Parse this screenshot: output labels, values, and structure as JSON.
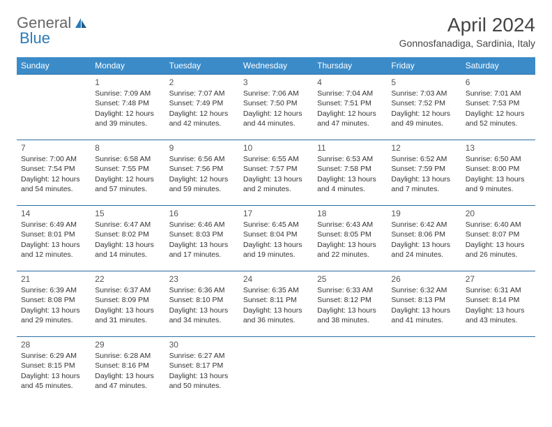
{
  "logo": {
    "text1": "General",
    "text2": "Blue"
  },
  "title": "April 2024",
  "subtitle": "Gonnosfanadiga, Sardinia, Italy",
  "colors": {
    "header_bg": "#3b8bc9",
    "header_text": "#ffffff",
    "cell_border": "#2a6da3",
    "body_text": "#333333",
    "title_text": "#444444",
    "logo_gray": "#666666",
    "logo_blue": "#2a7ab9",
    "background": "#ffffff"
  },
  "daynames": [
    "Sunday",
    "Monday",
    "Tuesday",
    "Wednesday",
    "Thursday",
    "Friday",
    "Saturday"
  ],
  "weeks": [
    [
      {
        "n": "",
        "sr": "",
        "ss": "",
        "d1": "",
        "d2": ""
      },
      {
        "n": "1",
        "sr": "Sunrise: 7:09 AM",
        "ss": "Sunset: 7:48 PM",
        "d1": "Daylight: 12 hours",
        "d2": "and 39 minutes."
      },
      {
        "n": "2",
        "sr": "Sunrise: 7:07 AM",
        "ss": "Sunset: 7:49 PM",
        "d1": "Daylight: 12 hours",
        "d2": "and 42 minutes."
      },
      {
        "n": "3",
        "sr": "Sunrise: 7:06 AM",
        "ss": "Sunset: 7:50 PM",
        "d1": "Daylight: 12 hours",
        "d2": "and 44 minutes."
      },
      {
        "n": "4",
        "sr": "Sunrise: 7:04 AM",
        "ss": "Sunset: 7:51 PM",
        "d1": "Daylight: 12 hours",
        "d2": "and 47 minutes."
      },
      {
        "n": "5",
        "sr": "Sunrise: 7:03 AM",
        "ss": "Sunset: 7:52 PM",
        "d1": "Daylight: 12 hours",
        "d2": "and 49 minutes."
      },
      {
        "n": "6",
        "sr": "Sunrise: 7:01 AM",
        "ss": "Sunset: 7:53 PM",
        "d1": "Daylight: 12 hours",
        "d2": "and 52 minutes."
      }
    ],
    [
      {
        "n": "7",
        "sr": "Sunrise: 7:00 AM",
        "ss": "Sunset: 7:54 PM",
        "d1": "Daylight: 12 hours",
        "d2": "and 54 minutes."
      },
      {
        "n": "8",
        "sr": "Sunrise: 6:58 AM",
        "ss": "Sunset: 7:55 PM",
        "d1": "Daylight: 12 hours",
        "d2": "and 57 minutes."
      },
      {
        "n": "9",
        "sr": "Sunrise: 6:56 AM",
        "ss": "Sunset: 7:56 PM",
        "d1": "Daylight: 12 hours",
        "d2": "and 59 minutes."
      },
      {
        "n": "10",
        "sr": "Sunrise: 6:55 AM",
        "ss": "Sunset: 7:57 PM",
        "d1": "Daylight: 13 hours",
        "d2": "and 2 minutes."
      },
      {
        "n": "11",
        "sr": "Sunrise: 6:53 AM",
        "ss": "Sunset: 7:58 PM",
        "d1": "Daylight: 13 hours",
        "d2": "and 4 minutes."
      },
      {
        "n": "12",
        "sr": "Sunrise: 6:52 AM",
        "ss": "Sunset: 7:59 PM",
        "d1": "Daylight: 13 hours",
        "d2": "and 7 minutes."
      },
      {
        "n": "13",
        "sr": "Sunrise: 6:50 AM",
        "ss": "Sunset: 8:00 PM",
        "d1": "Daylight: 13 hours",
        "d2": "and 9 minutes."
      }
    ],
    [
      {
        "n": "14",
        "sr": "Sunrise: 6:49 AM",
        "ss": "Sunset: 8:01 PM",
        "d1": "Daylight: 13 hours",
        "d2": "and 12 minutes."
      },
      {
        "n": "15",
        "sr": "Sunrise: 6:47 AM",
        "ss": "Sunset: 8:02 PM",
        "d1": "Daylight: 13 hours",
        "d2": "and 14 minutes."
      },
      {
        "n": "16",
        "sr": "Sunrise: 6:46 AM",
        "ss": "Sunset: 8:03 PM",
        "d1": "Daylight: 13 hours",
        "d2": "and 17 minutes."
      },
      {
        "n": "17",
        "sr": "Sunrise: 6:45 AM",
        "ss": "Sunset: 8:04 PM",
        "d1": "Daylight: 13 hours",
        "d2": "and 19 minutes."
      },
      {
        "n": "18",
        "sr": "Sunrise: 6:43 AM",
        "ss": "Sunset: 8:05 PM",
        "d1": "Daylight: 13 hours",
        "d2": "and 22 minutes."
      },
      {
        "n": "19",
        "sr": "Sunrise: 6:42 AM",
        "ss": "Sunset: 8:06 PM",
        "d1": "Daylight: 13 hours",
        "d2": "and 24 minutes."
      },
      {
        "n": "20",
        "sr": "Sunrise: 6:40 AM",
        "ss": "Sunset: 8:07 PM",
        "d1": "Daylight: 13 hours",
        "d2": "and 26 minutes."
      }
    ],
    [
      {
        "n": "21",
        "sr": "Sunrise: 6:39 AM",
        "ss": "Sunset: 8:08 PM",
        "d1": "Daylight: 13 hours",
        "d2": "and 29 minutes."
      },
      {
        "n": "22",
        "sr": "Sunrise: 6:37 AM",
        "ss": "Sunset: 8:09 PM",
        "d1": "Daylight: 13 hours",
        "d2": "and 31 minutes."
      },
      {
        "n": "23",
        "sr": "Sunrise: 6:36 AM",
        "ss": "Sunset: 8:10 PM",
        "d1": "Daylight: 13 hours",
        "d2": "and 34 minutes."
      },
      {
        "n": "24",
        "sr": "Sunrise: 6:35 AM",
        "ss": "Sunset: 8:11 PM",
        "d1": "Daylight: 13 hours",
        "d2": "and 36 minutes."
      },
      {
        "n": "25",
        "sr": "Sunrise: 6:33 AM",
        "ss": "Sunset: 8:12 PM",
        "d1": "Daylight: 13 hours",
        "d2": "and 38 minutes."
      },
      {
        "n": "26",
        "sr": "Sunrise: 6:32 AM",
        "ss": "Sunset: 8:13 PM",
        "d1": "Daylight: 13 hours",
        "d2": "and 41 minutes."
      },
      {
        "n": "27",
        "sr": "Sunrise: 6:31 AM",
        "ss": "Sunset: 8:14 PM",
        "d1": "Daylight: 13 hours",
        "d2": "and 43 minutes."
      }
    ],
    [
      {
        "n": "28",
        "sr": "Sunrise: 6:29 AM",
        "ss": "Sunset: 8:15 PM",
        "d1": "Daylight: 13 hours",
        "d2": "and 45 minutes."
      },
      {
        "n": "29",
        "sr": "Sunrise: 6:28 AM",
        "ss": "Sunset: 8:16 PM",
        "d1": "Daylight: 13 hours",
        "d2": "and 47 minutes."
      },
      {
        "n": "30",
        "sr": "Sunrise: 6:27 AM",
        "ss": "Sunset: 8:17 PM",
        "d1": "Daylight: 13 hours",
        "d2": "and 50 minutes."
      },
      {
        "n": "",
        "sr": "",
        "ss": "",
        "d1": "",
        "d2": ""
      },
      {
        "n": "",
        "sr": "",
        "ss": "",
        "d1": "",
        "d2": ""
      },
      {
        "n": "",
        "sr": "",
        "ss": "",
        "d1": "",
        "d2": ""
      },
      {
        "n": "",
        "sr": "",
        "ss": "",
        "d1": "",
        "d2": ""
      }
    ]
  ]
}
